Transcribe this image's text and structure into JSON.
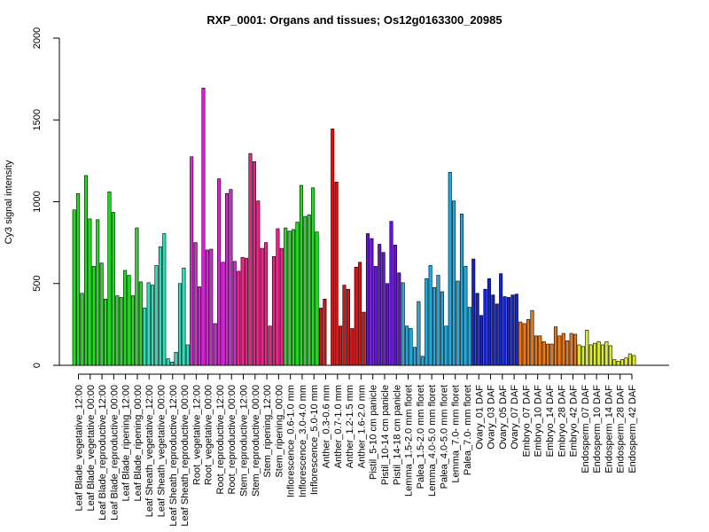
{
  "chart_data": {
    "type": "bar",
    "title": "RXP_0001: Organs and tissues; Os12g0163300_20985",
    "xlabel": "",
    "ylabel": "Cy3 signal intensity",
    "ylim": [
      0,
      2000
    ],
    "yticks": [
      0,
      500,
      1000,
      1500,
      2000
    ],
    "grid": false,
    "categories": [
      "Leaf Blade_vegetative_12:00",
      "Leaf Blade_vegetative_00:00",
      "Leaf Blade_reproductive_12:00",
      "Leaf Blade_reproductive_00:00",
      "Leaf Blade_ripening_12:00",
      "Leaf Blade_ripening_00:00",
      "Leaf Sheath_vegetative_12:00",
      "Leaf Sheath_vegetative_00:00",
      "Leaf Sheath_reproductive_12:00",
      "Leaf Sheath_reproductive_00:00",
      "Root_vegetative_12:00",
      "Root_vegetative_00:00",
      "Root_reproductive_12:00",
      "Root_reproductive_00:00",
      "Stem_reproductive_12:00",
      "Stem_reproductive_00:00",
      "Stem_ripening_12:00",
      "Stem_ripening_00:00",
      "Inflorescence_0.6-1.0 mm",
      "Inflorescence_3.0-4.0 mm",
      "Inflorescence_5.0-10 mm",
      "Anther_0.3-0.6 mm",
      "Anther_0.7-1.0 mm",
      "Anther_1.2-1.5 mm",
      "Anther_1.6-2.0 mm",
      "Pistil_5-10 cm panicle",
      "Pistil_10-14 cm panicle",
      "Pistil_14-18 cm panicle",
      "Lemma_1.5-2.0 mm floret",
      "Palea_1.5-2.0 mm floret",
      "Lemma_4.0-5.0 mm floret",
      "Palea_4.0-5.0 mm floret",
      "Lemma_7.0- mm floret",
      "Palea_7.0- mm floret",
      "Ovary_01 DAF",
      "Ovary_03 DAF",
      "Ovary_05 DAF",
      "Ovary_07 DAF",
      "Embryo_07 DAF",
      "Embryo_10 DAF",
      "Embryo_14 DAF",
      "Embryo_28 DAF",
      "Embryo_42 DAF",
      "Endosperm_07 DAF",
      "Endosperm_10 DAF",
      "Endosperm_14 DAF",
      "Endosperm_28 DAF",
      "Endosperm_42 DAF"
    ],
    "bar_groups": [
      {
        "values": [
          950,
          1050,
          440
        ],
        "color": "#22dd22"
      },
      {
        "values": [
          1160,
          895,
          605
        ],
        "color": "#22dd22"
      },
      {
        "values": [
          890,
          625,
          405
        ],
        "color": "#22dd22"
      },
      {
        "values": [
          1060,
          935,
          425
        ],
        "color": "#22dd22"
      },
      {
        "values": [
          415,
          580,
          550
        ],
        "color": "#22dd22"
      },
      {
        "values": [
          425,
          840,
          510
        ],
        "color": "#22dd22"
      },
      {
        "values": [
          350,
          505,
          490
        ],
        "color": "#33ddbb"
      },
      {
        "values": [
          610,
          725,
          805
        ],
        "color": "#33ddbb"
      },
      {
        "values": [
          40,
          20,
          80
        ],
        "color": "#33ddbb"
      },
      {
        "values": [
          500,
          595,
          125
        ],
        "color": "#33ddbb"
      },
      {
        "values": [
          1275,
          750,
          480
        ],
        "color": "#dd22dd"
      },
      {
        "values": [
          1695,
          705,
          710
        ],
        "color": "#dd22dd"
      },
      {
        "values": [
          255,
          1140,
          630
        ],
        "color": "#dd22dd"
      },
      {
        "values": [
          1050,
          1075,
          635
        ],
        "color": "#dd22dd"
      },
      {
        "values": [
          575,
          660,
          655
        ],
        "color": "#ee2288"
      },
      {
        "values": [
          1295,
          1245,
          1005
        ],
        "color": "#ee2288"
      },
      {
        "values": [
          715,
          750,
          240
        ],
        "color": "#ee2288"
      },
      {
        "values": [
          665,
          835,
          715
        ],
        "color": "#ee2288"
      },
      {
        "values": [
          840,
          820,
          830
        ],
        "color": "#22dd22"
      },
      {
        "values": [
          875,
          1100,
          910
        ],
        "color": "#22dd22"
      },
      {
        "values": [
          920,
          1085,
          815
        ],
        "color": "#22dd22"
      },
      {
        "values": [
          350,
          405,
          0
        ],
        "color": "#dd1111"
      },
      {
        "values": [
          1445,
          1120,
          240
        ],
        "color": "#dd1111"
      },
      {
        "values": [
          490,
          465,
          225
        ],
        "color": "#dd1111"
      },
      {
        "values": [
          600,
          630,
          325
        ],
        "color": "#dd1111"
      },
      {
        "values": [
          805,
          775,
          605
        ],
        "color": "#6611dd"
      },
      {
        "values": [
          740,
          690,
          500
        ],
        "color": "#6611dd"
      },
      {
        "values": [
          880,
          735,
          565
        ],
        "color": "#6611dd"
      },
      {
        "values": [
          505,
          240,
          225
        ],
        "color": "#22aadd"
      },
      {
        "values": [
          110,
          390,
          55
        ],
        "color": "#22aadd"
      },
      {
        "values": [
          530,
          610,
          475
        ],
        "color": "#22aadd"
      },
      {
        "values": [
          550,
          450,
          240
        ],
        "color": "#22aadd"
      },
      {
        "values": [
          1180,
          1005,
          515
        ],
        "color": "#22aadd"
      },
      {
        "values": [
          925,
          605,
          355
        ],
        "color": "#22aadd"
      },
      {
        "values": [
          650,
          440,
          305
        ],
        "color": "#1122dd"
      },
      {
        "values": [
          465,
          530,
          430
        ],
        "color": "#1122dd"
      },
      {
        "values": [
          375,
          560,
          420
        ],
        "color": "#1122dd"
      },
      {
        "values": [
          415,
          430,
          435
        ],
        "color": "#1122dd"
      },
      {
        "values": [
          265,
          255,
          280
        ],
        "color": "#ee7711"
      },
      {
        "values": [
          335,
          180,
          180
        ],
        "color": "#ee7711"
      },
      {
        "values": [
          145,
          130,
          130
        ],
        "color": "#ee7711"
      },
      {
        "values": [
          235,
          180,
          195
        ],
        "color": "#ee7711"
      },
      {
        "values": [
          150,
          195,
          190
        ],
        "color": "#ee7711"
      },
      {
        "values": [
          125,
          115,
          215
        ],
        "color": "#ddee22"
      },
      {
        "values": [
          125,
          135,
          145
        ],
        "color": "#ddee22"
      },
      {
        "values": [
          125,
          145,
          120
        ],
        "color": "#ddee22"
      },
      {
        "values": [
          35,
          25,
          35
        ],
        "color": "#ddee22"
      },
      {
        "values": [
          45,
          70,
          60
        ],
        "color": "#ddee22"
      }
    ]
  }
}
